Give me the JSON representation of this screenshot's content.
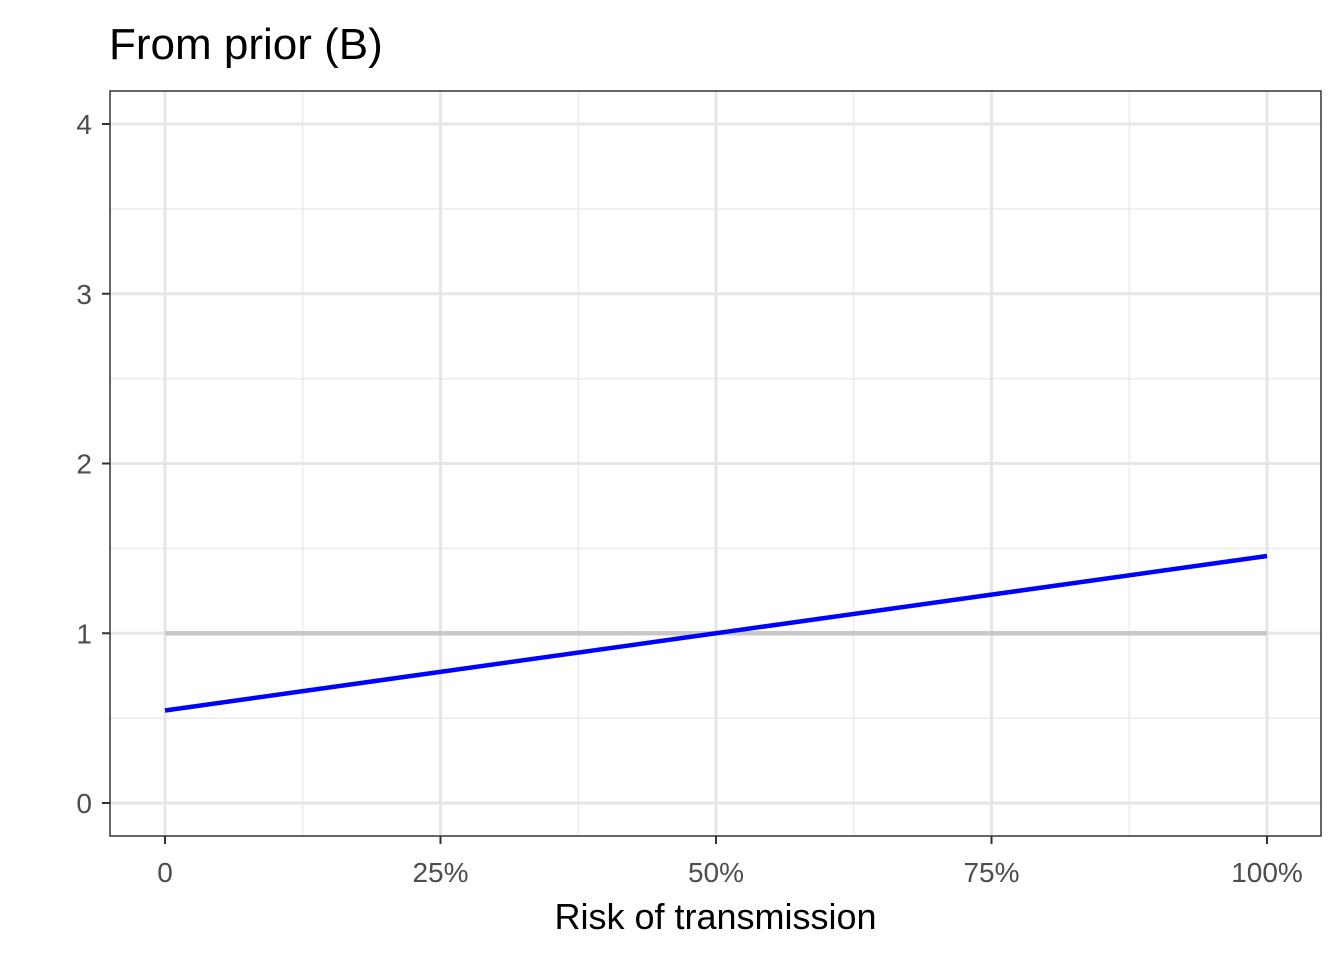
{
  "chart_data": {
    "type": "line",
    "title": "From prior (B)",
    "xlabel": "Risk of transmission",
    "ylabel": "",
    "xlim": [
      0,
      1
    ],
    "ylim": [
      0,
      4
    ],
    "x_ticks": [
      {
        "value": 0,
        "label": "0"
      },
      {
        "value": 0.25,
        "label": "25%"
      },
      {
        "value": 0.5,
        "label": "50%"
      },
      {
        "value": 0.75,
        "label": "75%"
      },
      {
        "value": 1,
        "label": "100%"
      }
    ],
    "y_ticks": [
      {
        "value": 0,
        "label": "0"
      },
      {
        "value": 1,
        "label": "1"
      },
      {
        "value": 2,
        "label": "2"
      },
      {
        "value": 3,
        "label": "3"
      },
      {
        "value": 4,
        "label": "4"
      }
    ],
    "grid": true,
    "series": [
      {
        "color": "#0000ff",
        "x": [
          0,
          1
        ],
        "y": [
          0.545,
          1.455
        ]
      },
      {
        "color": "#c8c8c8",
        "x": [
          0,
          1
        ],
        "y": [
          1,
          1
        ]
      }
    ]
  }
}
